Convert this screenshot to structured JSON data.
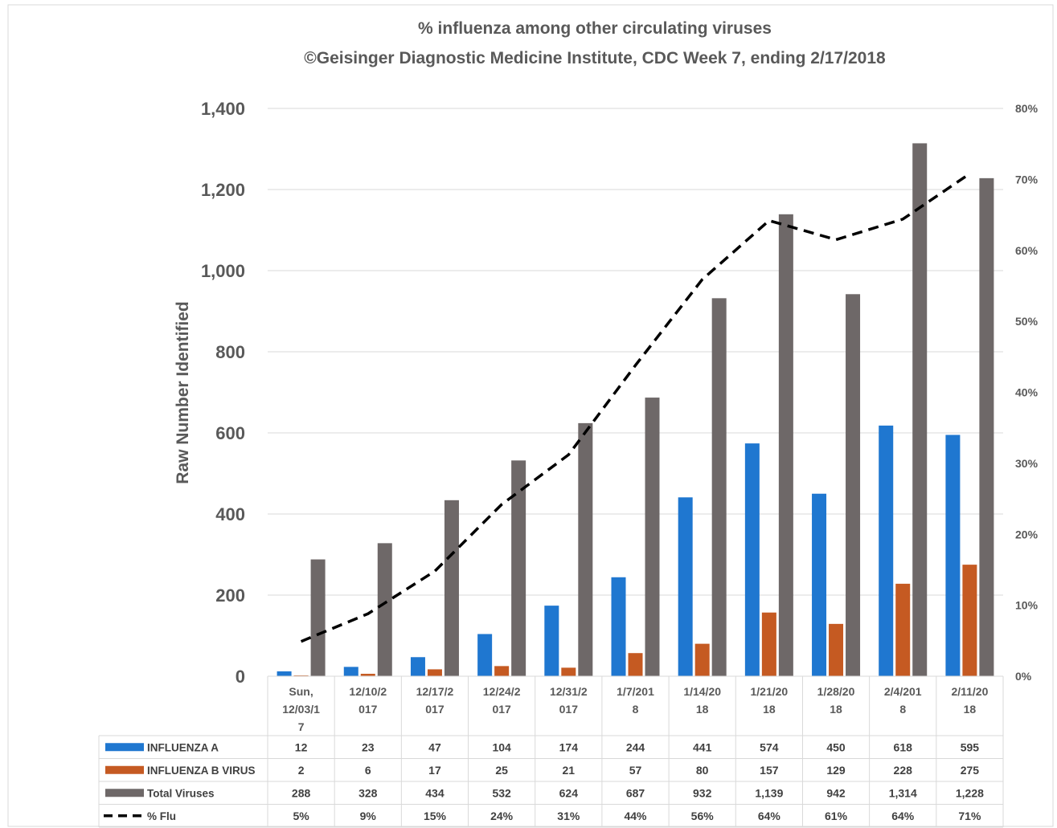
{
  "chart_data": {
    "type": "bar",
    "title": "% influenza among other circulating viruses",
    "subtitle": "©Geisinger Diagnostic Medicine Institute, CDC Week 7, ending 2/17/2018",
    "ylabel": "Raw Number Identified",
    "ylim": [
      0,
      1400
    ],
    "yticks": [
      "0",
      "200",
      "400",
      "600",
      "800",
      "1,000",
      "1,200",
      "1,400"
    ],
    "y2lim": [
      0,
      80
    ],
    "y2ticks": [
      "0%",
      "10%",
      "20%",
      "30%",
      "40%",
      "50%",
      "60%",
      "70%",
      "80%"
    ],
    "categories": [
      [
        "Sun,",
        "12/03/1",
        "7"
      ],
      [
        "12/10/2",
        "017"
      ],
      [
        "12/17/2",
        "017"
      ],
      [
        "12/24/2",
        "017"
      ],
      [
        "12/31/2",
        "017"
      ],
      [
        "1/7/201",
        "8"
      ],
      [
        "1/14/20",
        "18"
      ],
      [
        "1/21/20",
        "18"
      ],
      [
        "1/28/20",
        "18"
      ],
      [
        "2/4/201",
        "8"
      ],
      [
        "2/11/20",
        "18"
      ]
    ],
    "series": [
      {
        "name": "INFLUENZA A",
        "kind": "bar",
        "axis": "left",
        "color": "#1F77D0",
        "values": [
          12,
          23,
          47,
          104,
          174,
          244,
          441,
          574,
          450,
          618,
          595
        ],
        "labels": [
          "12",
          "23",
          "47",
          "104",
          "174",
          "244",
          "441",
          "574",
          "450",
          "618",
          "595"
        ]
      },
      {
        "name": "INFLUENZA B VIRUS",
        "kind": "bar",
        "axis": "left",
        "color": "#C55A22",
        "values": [
          2,
          6,
          17,
          25,
          21,
          57,
          80,
          157,
          129,
          228,
          275
        ],
        "labels": [
          "2",
          "6",
          "17",
          "25",
          "21",
          "57",
          "80",
          "157",
          "129",
          "228",
          "275"
        ]
      },
      {
        "name": "Total Viruses",
        "kind": "bar",
        "axis": "left",
        "color": "#6E6868",
        "values": [
          288,
          328,
          434,
          532,
          624,
          687,
          932,
          1139,
          942,
          1314,
          1228
        ],
        "labels": [
          "288",
          "328",
          "434",
          "532",
          "624",
          "687",
          "932",
          "1,139",
          "942",
          "1,314",
          "1,228"
        ]
      },
      {
        "name": "% Flu",
        "kind": "line",
        "axis": "right",
        "color": "#000000",
        "values": [
          4.9,
          8.8,
          14.8,
          24.2,
          31.2,
          43.8,
          55.9,
          64.2,
          61.5,
          64.4,
          70.8
        ],
        "labels": [
          "5%",
          "9%",
          "15%",
          "24%",
          "31%",
          "44%",
          "56%",
          "64%",
          "61%",
          "64%",
          "71%"
        ]
      }
    ],
    "grid": true,
    "legend": "data-table"
  }
}
